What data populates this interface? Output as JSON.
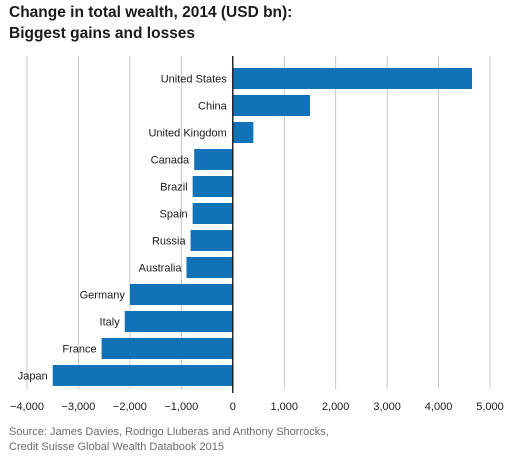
{
  "chart_data": {
    "type": "bar",
    "orientation": "horizontal",
    "title_line1": "Change in total wealth, 2014 (USD bn):",
    "title_line2": "Biggest gains and losses",
    "categories": [
      "United States",
      "China",
      "United Kingdom",
      "Canada",
      "Brazil",
      "Spain",
      "Russia",
      "Australia",
      "Germany",
      "Italy",
      "France",
      "Japan"
    ],
    "values": [
      4650,
      1500,
      400,
      -750,
      -780,
      -780,
      -820,
      -900,
      -2000,
      -2100,
      -2550,
      -3500
    ],
    "xlim": [
      -4000,
      5000
    ],
    "xticks": [
      -4000,
      -3000,
      -2000,
      -1000,
      0,
      1000,
      2000,
      3000,
      4000,
      5000
    ],
    "xtick_labels": [
      "−4,000",
      "−3,000",
      "−2,000",
      "−1,000",
      "0",
      "1,000",
      "2,000",
      "3,000",
      "4,000",
      "5,000"
    ],
    "grid": "vertical",
    "bar_color": "#1272b8"
  },
  "source_line1": "Source: James Davies, Rodrigo Lluberas and Anthony Shorrocks,",
  "source_line2": "Credit Suisse Global Wealth Databook 2015"
}
